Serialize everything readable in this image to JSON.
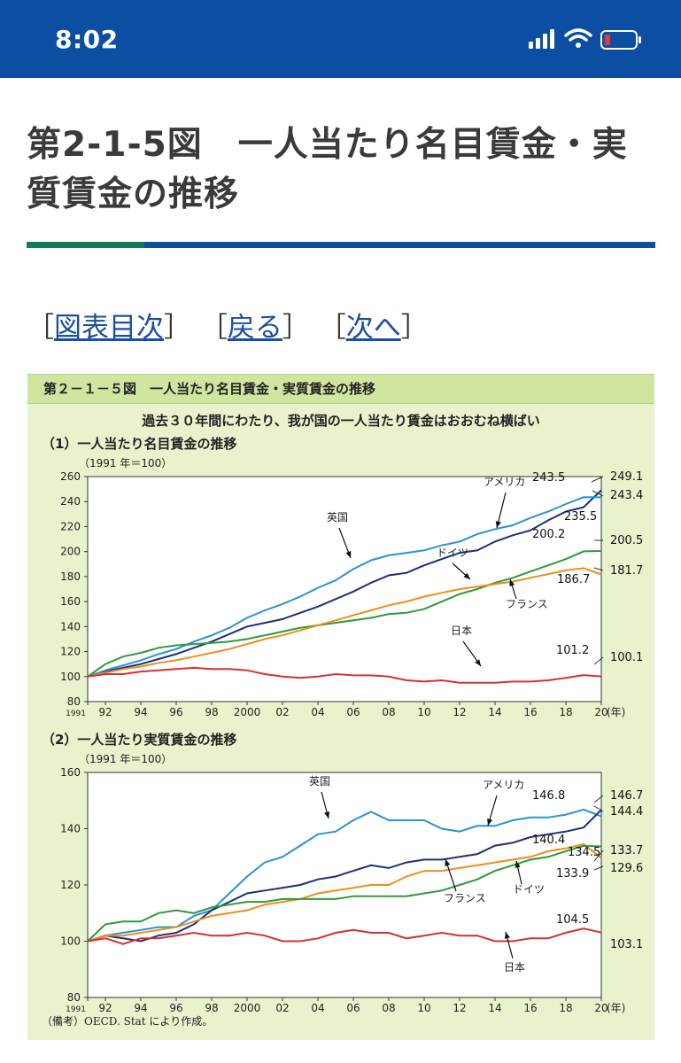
{
  "status": {
    "time": "8:02"
  },
  "page": {
    "title_line1": "第2-1-5図　一人当たり名目賃金・実",
    "title_line2": "質賃金の推移"
  },
  "nav": {
    "bracket_open": "［",
    "bracket_close": "］",
    "links": [
      "図表目次",
      "戻る",
      "次へ"
    ]
  },
  "figure": {
    "header": "第２－１－５図　一人当たり名目賃金・実質賃金の推移",
    "subtitle": "過去３０年間にわたり、我が国の一人当たり賃金はおおむね横ばい",
    "note": "（備考）OECD. Stat により作成。"
  },
  "chart_data": [
    {
      "type": "line",
      "title": "（1）一人当たり名目賃金の推移",
      "unit": "（1991 年＝100）",
      "x": [
        1991,
        1992,
        1993,
        1994,
        1995,
        1996,
        1997,
        1998,
        1999,
        2000,
        2001,
        2002,
        2003,
        2004,
        2005,
        2006,
        2007,
        2008,
        2009,
        2010,
        2011,
        2012,
        2013,
        2014,
        2015,
        2016,
        2017,
        2018,
        2019,
        2020
      ],
      "x_tick_labels": [
        "1991",
        "92",
        "94",
        "96",
        "98",
        "2000",
        "02",
        "04",
        "06",
        "08",
        "10",
        "12",
        "14",
        "16",
        "18",
        "20"
      ],
      "x_unit": "(年)",
      "ylim": [
        80,
        260
      ],
      "y_ticks": [
        80,
        100,
        120,
        140,
        160,
        180,
        200,
        220,
        240,
        260
      ],
      "series": [
        {
          "name": "アメリカ",
          "color": "#1b2f7c",
          "values": [
            100,
            104,
            107,
            110,
            114,
            118,
            123,
            128,
            134,
            140,
            143,
            146,
            151,
            156,
            162,
            168,
            175,
            181,
            183,
            189,
            194,
            199,
            201,
            208,
            213,
            217,
            225,
            232,
            235.5,
            249.1
          ]
        },
        {
          "name": "英国",
          "color": "#2a93d1",
          "values": [
            100,
            105,
            109,
            113,
            118,
            122,
            128,
            133,
            139,
            147,
            153,
            158,
            164,
            171,
            177,
            186,
            193,
            197,
            199,
            201,
            205,
            208,
            214,
            218,
            221,
            227,
            232,
            238,
            243.5,
            243.4
          ]
        },
        {
          "name": "ドイツ",
          "color": "#2d9a3a",
          "values": [
            100,
            110,
            116,
            119,
            123,
            125,
            126,
            127,
            128,
            130,
            133,
            136,
            139,
            141,
            143,
            145,
            147,
            150,
            151,
            154,
            160,
            166,
            170,
            175,
            179,
            184,
            189,
            194,
            200.2,
            200.5
          ]
        },
        {
          "name": "フランス",
          "color": "#ee8f1b",
          "values": [
            100,
            103,
            106,
            108,
            111,
            113,
            116,
            119,
            122,
            126,
            130,
            133,
            137,
            141,
            145,
            149,
            153,
            157,
            160,
            164,
            167,
            170,
            172,
            174,
            176,
            179,
            182,
            185,
            186.7,
            181.7
          ]
        },
        {
          "name": "日本",
          "color": "#d63031",
          "values": [
            100,
            102,
            102,
            104,
            105,
            106,
            107,
            106,
            106,
            105,
            102,
            100,
            99,
            100,
            102,
            101,
            101,
            100,
            97,
            96,
            97,
            95,
            95,
            95,
            96,
            96,
            97,
            99,
            101.2,
            100.1
          ]
        }
      ],
      "annotations": [
        "243.5",
        "235.5",
        "249.1",
        "243.4",
        "200.2",
        "200.5",
        "186.7",
        "181.7",
        "101.2",
        "100.1"
      ]
    },
    {
      "type": "line",
      "title": "（2）一人当たり実質賃金の推移",
      "unit": "（1991 年＝100）",
      "x": [
        1991,
        1992,
        1993,
        1994,
        1995,
        1996,
        1997,
        1998,
        1999,
        2000,
        2001,
        2002,
        2003,
        2004,
        2005,
        2006,
        2007,
        2008,
        2009,
        2010,
        2011,
        2012,
        2013,
        2014,
        2015,
        2016,
        2017,
        2018,
        2019,
        2020
      ],
      "x_tick_labels": [
        "1991",
        "92",
        "94",
        "96",
        "98",
        "2000",
        "02",
        "04",
        "06",
        "08",
        "10",
        "12",
        "14",
        "16",
        "18",
        "20"
      ],
      "x_unit": "(年)",
      "ylim": [
        80,
        160
      ],
      "y_ticks": [
        80,
        100,
        120,
        140,
        160
      ],
      "series": [
        {
          "name": "英国",
          "color": "#2a93d1",
          "values": [
            100,
            102,
            103,
            104,
            105,
            105,
            109,
            111,
            117,
            123,
            128,
            130,
            134,
            138,
            139,
            143,
            146,
            143,
            143,
            143,
            140,
            139,
            141,
            141,
            143,
            144,
            144,
            145,
            146.8,
            144.4
          ]
        },
        {
          "name": "アメリカ",
          "color": "#1b2f7c",
          "values": [
            100,
            102,
            101,
            100,
            102,
            103,
            106,
            111,
            114,
            117,
            118,
            119,
            120,
            122,
            123,
            125,
            127,
            126,
            128,
            129,
            129,
            130,
            131,
            134,
            135,
            137,
            138,
            139,
            140.4,
            146.7
          ]
        },
        {
          "name": "フランス",
          "color": "#ee8f1b",
          "values": [
            100,
            102,
            102,
            103,
            104,
            105,
            107,
            109,
            110,
            111,
            113,
            114,
            115,
            117,
            118,
            119,
            120,
            120,
            123,
            125,
            125,
            126,
            127,
            128,
            129,
            130,
            132,
            133,
            134.5,
            129.6
          ]
        },
        {
          "name": "ドイツ",
          "color": "#2d9a3a",
          "values": [
            100,
            106,
            107,
            107,
            110,
            111,
            110,
            112,
            113,
            114,
            114,
            115,
            115,
            115,
            115,
            116,
            116,
            116,
            116,
            117,
            118,
            120,
            122,
            125,
            127,
            129,
            130,
            132,
            133.9,
            133.7
          ]
        },
        {
          "name": "日本",
          "color": "#d63031",
          "values": [
            100,
            101,
            99,
            101,
            101,
            102,
            103,
            102,
            102,
            103,
            102,
            100,
            100,
            101,
            103,
            104,
            103,
            103,
            101,
            102,
            103,
            102,
            102,
            100,
            100,
            101,
            101,
            103,
            104.5,
            103.1
          ]
        }
      ],
      "annotations": [
        "146.8",
        "140.4",
        "134.5",
        "133.9",
        "104.5",
        "146.7",
        "144.4",
        "133.7",
        "129.6",
        "103.1"
      ]
    }
  ]
}
